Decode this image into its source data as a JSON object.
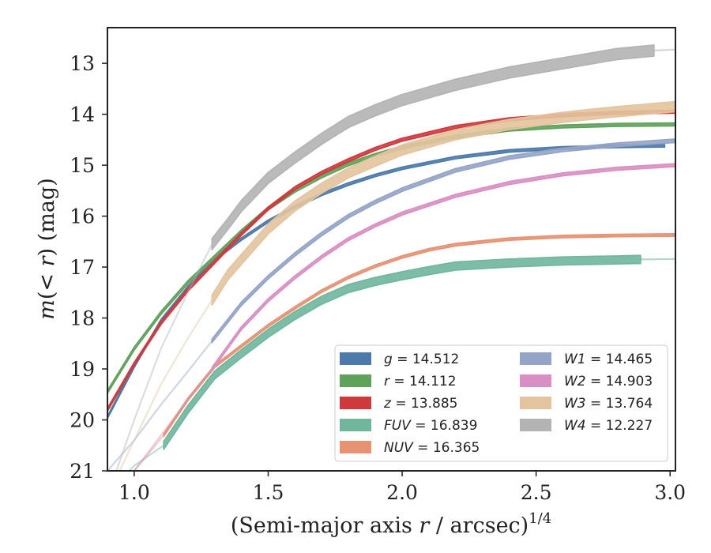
{
  "chart_data": {
    "type": "line",
    "title": "",
    "xlabel": "(Semi-major axis r / arcsec)^{1/4}",
    "xlabel_main": "(Semi-major axis ",
    "xlabel_var": "r",
    "xlabel_tail": " / arcsec)",
    "xlabel_exp": "1/4",
    "ylabel": "m(< r) (mag)",
    "ylabel_var": "m",
    "ylabel_open": "(",
    "ylabel_lt": "<",
    "ylabel_close": ") (mag)",
    "xlim": [
      0.9,
      3.02
    ],
    "ylim": [
      21.0,
      12.3
    ],
    "y_inverted": true,
    "grid": false,
    "legend_position": "lower-right",
    "legend_columns": 2,
    "xticks": [
      1.0,
      1.5,
      2.0,
      2.5,
      3.0
    ],
    "xtick_labels": [
      "1.0",
      "1.5",
      "2.0",
      "2.5",
      "3.0"
    ],
    "yticks": [
      13,
      14,
      15,
      16,
      17,
      18,
      19,
      20,
      21
    ],
    "ytick_labels": [
      "13",
      "14",
      "15",
      "16",
      "17",
      "18",
      "19",
      "20",
      "21"
    ],
    "series": [
      {
        "name": "g = 14.512",
        "var": "g",
        "value": "14.512",
        "color": "#4c7aab",
        "band": {
          "x": [
            0.9,
            1.0,
            1.1,
            1.2,
            1.3,
            1.4,
            1.5,
            1.6,
            1.7,
            1.8,
            1.9,
            2.0,
            2.2,
            2.4,
            2.6,
            2.8,
            2.98
          ],
          "y": [
            19.95,
            18.95,
            18.05,
            17.4,
            16.85,
            16.45,
            16.1,
            15.82,
            15.57,
            15.37,
            15.2,
            15.06,
            14.85,
            14.72,
            14.66,
            14.63,
            14.62
          ],
          "w": 0.05
        },
        "ext": null
      },
      {
        "name": "r = 14.112",
        "var": "r",
        "value": "14.112",
        "color": "#5fa25b",
        "band": {
          "x": [
            0.9,
            1.0,
            1.1,
            1.2,
            1.3,
            1.4,
            1.5,
            1.6,
            1.7,
            1.8,
            1.9,
            2.0,
            2.2,
            2.4,
            2.6,
            2.8,
            3.02
          ],
          "y": [
            19.45,
            18.6,
            17.9,
            17.3,
            16.8,
            16.3,
            15.85,
            15.5,
            15.22,
            14.98,
            14.8,
            14.65,
            14.44,
            14.3,
            14.24,
            14.21,
            14.2
          ],
          "w": 0.06
        },
        "ext": null
      },
      {
        "name": "z = 13.885",
        "var": "z",
        "value": "13.885",
        "color": "#d0393c",
        "band": {
          "x": [
            0.9,
            1.0,
            1.1,
            1.2,
            1.3,
            1.4,
            1.5,
            1.6,
            1.7,
            1.8,
            1.9,
            2.0,
            2.2,
            2.4,
            2.6,
            2.8,
            3.02
          ],
          "y": [
            19.8,
            18.9,
            18.1,
            17.45,
            16.9,
            16.35,
            15.85,
            15.45,
            15.15,
            14.9,
            14.68,
            14.5,
            14.25,
            14.1,
            14.02,
            13.97,
            13.95
          ],
          "w": 0.06
        },
        "ext": null
      },
      {
        "name": "FUV = 16.839",
        "var": "FUV",
        "value": "16.839",
        "color": "#6fb69d",
        "band": {
          "x": [
            1.11,
            1.2,
            1.3,
            1.4,
            1.5,
            1.6,
            1.7,
            1.8,
            1.9,
            2.0,
            2.1,
            2.2,
            2.4,
            2.6,
            2.8,
            2.89
          ],
          "y": [
            20.5,
            19.8,
            19.12,
            18.7,
            18.3,
            17.95,
            17.65,
            17.42,
            17.28,
            17.17,
            17.07,
            16.98,
            16.92,
            16.88,
            16.86,
            16.85
          ],
          "w": 0.16
        },
        "ext": {
          "x": [
            0.9,
            1.0,
            1.11
          ],
          "y": [
            21.4,
            20.9,
            20.5
          ],
          "x2": [
            2.89,
            3.02
          ],
          "y2": [
            16.85,
            16.84
          ]
        }
      },
      {
        "name": "NUV = 16.365",
        "var": "NUV",
        "value": "16.365",
        "color": "#e69273",
        "band": {
          "x": [
            1.11,
            1.2,
            1.3,
            1.4,
            1.5,
            1.6,
            1.7,
            1.8,
            1.9,
            2.0,
            2.1,
            2.2,
            2.4,
            2.6,
            2.8,
            3.02
          ],
          "y": [
            20.3,
            19.6,
            18.95,
            18.55,
            18.15,
            17.8,
            17.47,
            17.2,
            16.98,
            16.8,
            16.66,
            16.56,
            16.45,
            16.4,
            16.38,
            16.37
          ],
          "w": 0.05
        },
        "ext": {
          "x": [
            0.9,
            1.0,
            1.11
          ],
          "y": [
            21.6,
            21.0,
            20.3
          ],
          "x2": null,
          "y2": null
        }
      },
      {
        "name": "W1 = 14.465",
        "var": "W1",
        "value": "14.465",
        "color": "#93a4c6",
        "band": {
          "x": [
            1.29,
            1.4,
            1.5,
            1.6,
            1.7,
            1.8,
            1.9,
            2.0,
            2.2,
            2.4,
            2.6,
            2.8,
            3.02
          ],
          "y": [
            18.45,
            17.72,
            17.2,
            16.75,
            16.35,
            16.0,
            15.72,
            15.48,
            15.1,
            14.85,
            14.7,
            14.6,
            14.52
          ],
          "w": 0.07
        },
        "ext": {
          "x": [
            0.9,
            1.0,
            1.1,
            1.2,
            1.29
          ],
          "y": [
            21.0,
            20.4,
            19.7,
            19.05,
            18.45
          ],
          "x2": null,
          "y2": null
        }
      },
      {
        "name": "W2 = 14.903",
        "var": "W2",
        "value": "14.903",
        "color": "#d98fc3",
        "band": {
          "x": [
            1.29,
            1.4,
            1.5,
            1.6,
            1.7,
            1.8,
            1.9,
            2.0,
            2.2,
            2.4,
            2.6,
            2.8,
            3.02
          ],
          "y": [
            19.0,
            18.2,
            17.65,
            17.2,
            16.8,
            16.45,
            16.18,
            15.95,
            15.6,
            15.35,
            15.18,
            15.07,
            15.0
          ],
          "w": 0.06
        },
        "ext": {
          "x": [
            0.9,
            1.0,
            1.1,
            1.2,
            1.29
          ],
          "y": [
            21.7,
            21.0,
            20.3,
            19.6,
            19.0
          ],
          "x2": null,
          "y2": null
        }
      },
      {
        "name": "W3 = 13.764",
        "var": "W3",
        "value": "13.764",
        "color": "#e3c49e",
        "band": {
          "x": [
            1.29,
            1.35,
            1.4,
            1.5,
            1.6,
            1.7,
            1.8,
            1.9,
            2.0,
            2.2,
            2.4,
            2.6,
            2.8,
            3.02
          ],
          "y": [
            17.65,
            17.15,
            16.85,
            16.25,
            15.8,
            15.45,
            15.15,
            14.92,
            14.7,
            14.4,
            14.2,
            14.06,
            13.95,
            13.85
          ],
          "w": 0.2
        },
        "ext": {
          "x": [
            0.9,
            1.0,
            1.1,
            1.2,
            1.29
          ],
          "y": [
            21.5,
            20.4,
            19.3,
            18.4,
            17.65
          ],
          "x2": null,
          "y2": null
        }
      },
      {
        "name": "W4 = 12.227",
        "var": "W4",
        "value": "12.227",
        "color": "#b3b3b3",
        "band": {
          "x": [
            1.29,
            1.35,
            1.4,
            1.5,
            1.6,
            1.7,
            1.8,
            1.9,
            2.0,
            2.2,
            2.4,
            2.6,
            2.8,
            2.94
          ],
          "y": [
            16.55,
            16.15,
            15.8,
            15.25,
            14.85,
            14.48,
            14.15,
            13.92,
            13.72,
            13.42,
            13.18,
            13.0,
            12.82,
            12.75
          ],
          "w": 0.22
        },
        "ext": {
          "x": [
            0.9,
            1.0,
            1.1,
            1.2,
            1.29
          ],
          "y": [
            21.5,
            20.0,
            18.6,
            17.5,
            16.55
          ],
          "x2": [
            2.94,
            3.02
          ],
          "y2": [
            12.75,
            12.73
          ]
        }
      }
    ]
  }
}
